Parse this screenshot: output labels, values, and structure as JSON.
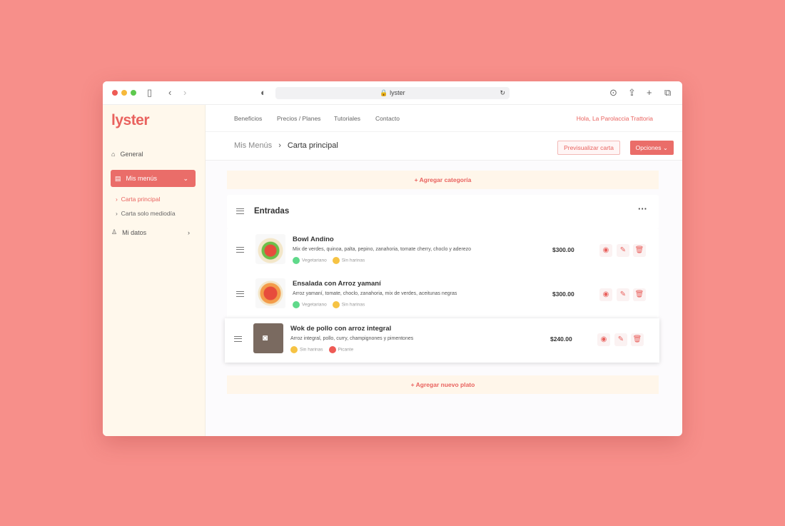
{
  "browser": {
    "url": "lyster"
  },
  "sidebar": {
    "logo": "lyster",
    "items": [
      {
        "label": "General"
      },
      {
        "label": "Mis menús"
      },
      {
        "label": "Mi datos"
      }
    ],
    "subitems": [
      {
        "label": "Carta principal"
      },
      {
        "label": "Carta solo mediodía"
      }
    ]
  },
  "nav": {
    "links": [
      "Beneficios",
      "Precios / Planes",
      "Tutoriales",
      "Contacto"
    ],
    "greeting": "Hola,",
    "user": "La Parolaccia Trattoria"
  },
  "breadcrumb": {
    "parent": "Mis Menús",
    "current": "Carta principal"
  },
  "actions": {
    "preview": "Previsualizar carta",
    "options": "Opciones"
  },
  "add_category": "+ Agregar categoría",
  "category": {
    "title": "Entradas"
  },
  "dishes": [
    {
      "name": "Bowl Andino",
      "desc": "Mix de verdes, quinoa, palta, pepino, zanahoria, tomate cherry, choclo y aderezo",
      "price": "$300.00",
      "tags": [
        "Vegetariano",
        "Sin harinas"
      ]
    },
    {
      "name": "Ensalada con Arroz yamaní",
      "desc": "Arroz yamaní, tomate, choclo, zanahoria, mix de verdes, aceitunas negras",
      "price": "$300.00",
      "tags": [
        "Vegetariano",
        "Sin harinas"
      ]
    },
    {
      "name": "Wok de pollo con arroz integral",
      "desc": "Arroz integral, pollo, curry, champignones y pimentones",
      "price": "$240.00",
      "tags": [
        "Sin harinas",
        "Picante"
      ]
    }
  ],
  "add_dish": "+ Agregar nuevo plato",
  "colors": {
    "accent": "#e9625e",
    "background": "#f78f8a",
    "vegetarian": "#5fd98a",
    "gluten_free": "#f6c344",
    "spicy": "#ee5a55"
  }
}
